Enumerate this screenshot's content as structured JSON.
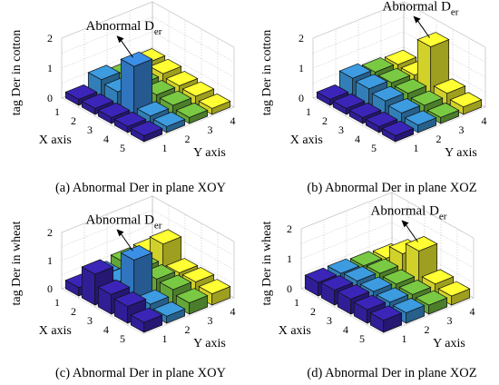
{
  "figure": {
    "colors": {
      "row1": "#3b25b8",
      "row2": "#3d9be0",
      "row3": "#7ac943",
      "row4": "#ffff33",
      "abnormal": "#3b8fe6",
      "edge": "#111111",
      "grid": "#bdbdbd"
    }
  },
  "chart_data": [
    {
      "type": "bar3d",
      "panel": "a",
      "caption": "(a) Abnormal Der in plane XOY",
      "zlabel": "tag Der in cotton",
      "xlabel": "X axis",
      "ylabel": "Y axis",
      "x_ticks": [
        "1",
        "2",
        "3",
        "4",
        "5"
      ],
      "y_ticks": [
        "1",
        "2",
        "3",
        "4"
      ],
      "z_ticks": [
        "0",
        "1",
        "2"
      ],
      "zlim": [
        0,
        2
      ],
      "annotation": {
        "text": "Abnormal D",
        "subscript": "er"
      },
      "values": [
        [
          0.2,
          0.2,
          0.2,
          0.2,
          0.2
        ],
        [
          0.55,
          0.45,
          1.6,
          0.25,
          0.2
        ],
        [
          0.4,
          0.4,
          0.35,
          0.3,
          0.2
        ],
        [
          0.5,
          0.45,
          0.35,
          0.3,
          0.2
        ]
      ]
    },
    {
      "type": "bar3d",
      "panel": "b",
      "caption": "(b) Abnormal Der in plane XOZ",
      "zlabel": "tag Der in cotton",
      "xlabel": "X axis",
      "ylabel": "Y axis",
      "x_ticks": [
        "1",
        "2",
        "3",
        "4",
        "5"
      ],
      "y_ticks": [
        "1",
        "2",
        "3",
        "4"
      ],
      "z_ticks": [
        "0",
        "1",
        "2"
      ],
      "zlim": [
        0,
        2
      ],
      "annotation": {
        "text": "Abnormal D",
        "subscript": "er"
      },
      "values": [
        [
          0.2,
          0.2,
          0.2,
          0.2,
          0.2
        ],
        [
          0.6,
          0.55,
          0.45,
          0.35,
          0.25
        ],
        [
          0.5,
          0.45,
          0.4,
          0.3,
          0.2
        ],
        [
          0.45,
          0.4,
          1.65,
          0.4,
          0.25
        ]
      ]
    },
    {
      "type": "bar3d",
      "panel": "c",
      "caption": "(c) Abnormal Der in plane XOY",
      "zlabel": "tag Der in wheat",
      "xlabel": "X axis",
      "ylabel": "Y axis",
      "x_ticks": [
        "1",
        "2",
        "3",
        "4",
        "5"
      ],
      "y_ticks": [
        "1",
        "2",
        "3",
        "4"
      ],
      "z_ticks": [
        "0",
        "1",
        "2"
      ],
      "zlim": [
        0,
        2
      ],
      "annotation": {
        "text": "Abnormal D",
        "subscript": "er"
      },
      "values": [
        [
          0.3,
          1.1,
          0.7,
          0.6,
          0.35
        ],
        [
          0.4,
          0.5,
          1.6,
          0.35,
          0.25
        ],
        [
          0.55,
          0.65,
          0.6,
          0.55,
          0.4
        ],
        [
          0.6,
          1.2,
          0.5,
          0.5,
          0.4
        ]
      ]
    },
    {
      "type": "bar3d",
      "panel": "d",
      "caption": "(d) Abnormal Der in plane XOZ",
      "zlabel": "tag Der in wheat",
      "xlabel": "X axis",
      "ylabel": "Y axis",
      "x_ticks": [
        "1",
        "2",
        "3",
        "4",
        "5"
      ],
      "y_ticks": [
        "1",
        "2",
        "3",
        "4"
      ],
      "z_ticks": [
        "0",
        "1",
        "2"
      ],
      "zlim": [
        0,
        2
      ],
      "annotation": {
        "text": "Abnormal D",
        "subscript": "er"
      },
      "values": [
        [
          0.45,
          0.5,
          0.5,
          0.45,
          0.4
        ],
        [
          0.45,
          0.5,
          0.45,
          0.4,
          0.35
        ],
        [
          0.4,
          0.45,
          0.4,
          0.35,
          0.3
        ],
        [
          0.35,
          0.8,
          1.2,
          0.4,
          0.3
        ]
      ]
    }
  ]
}
